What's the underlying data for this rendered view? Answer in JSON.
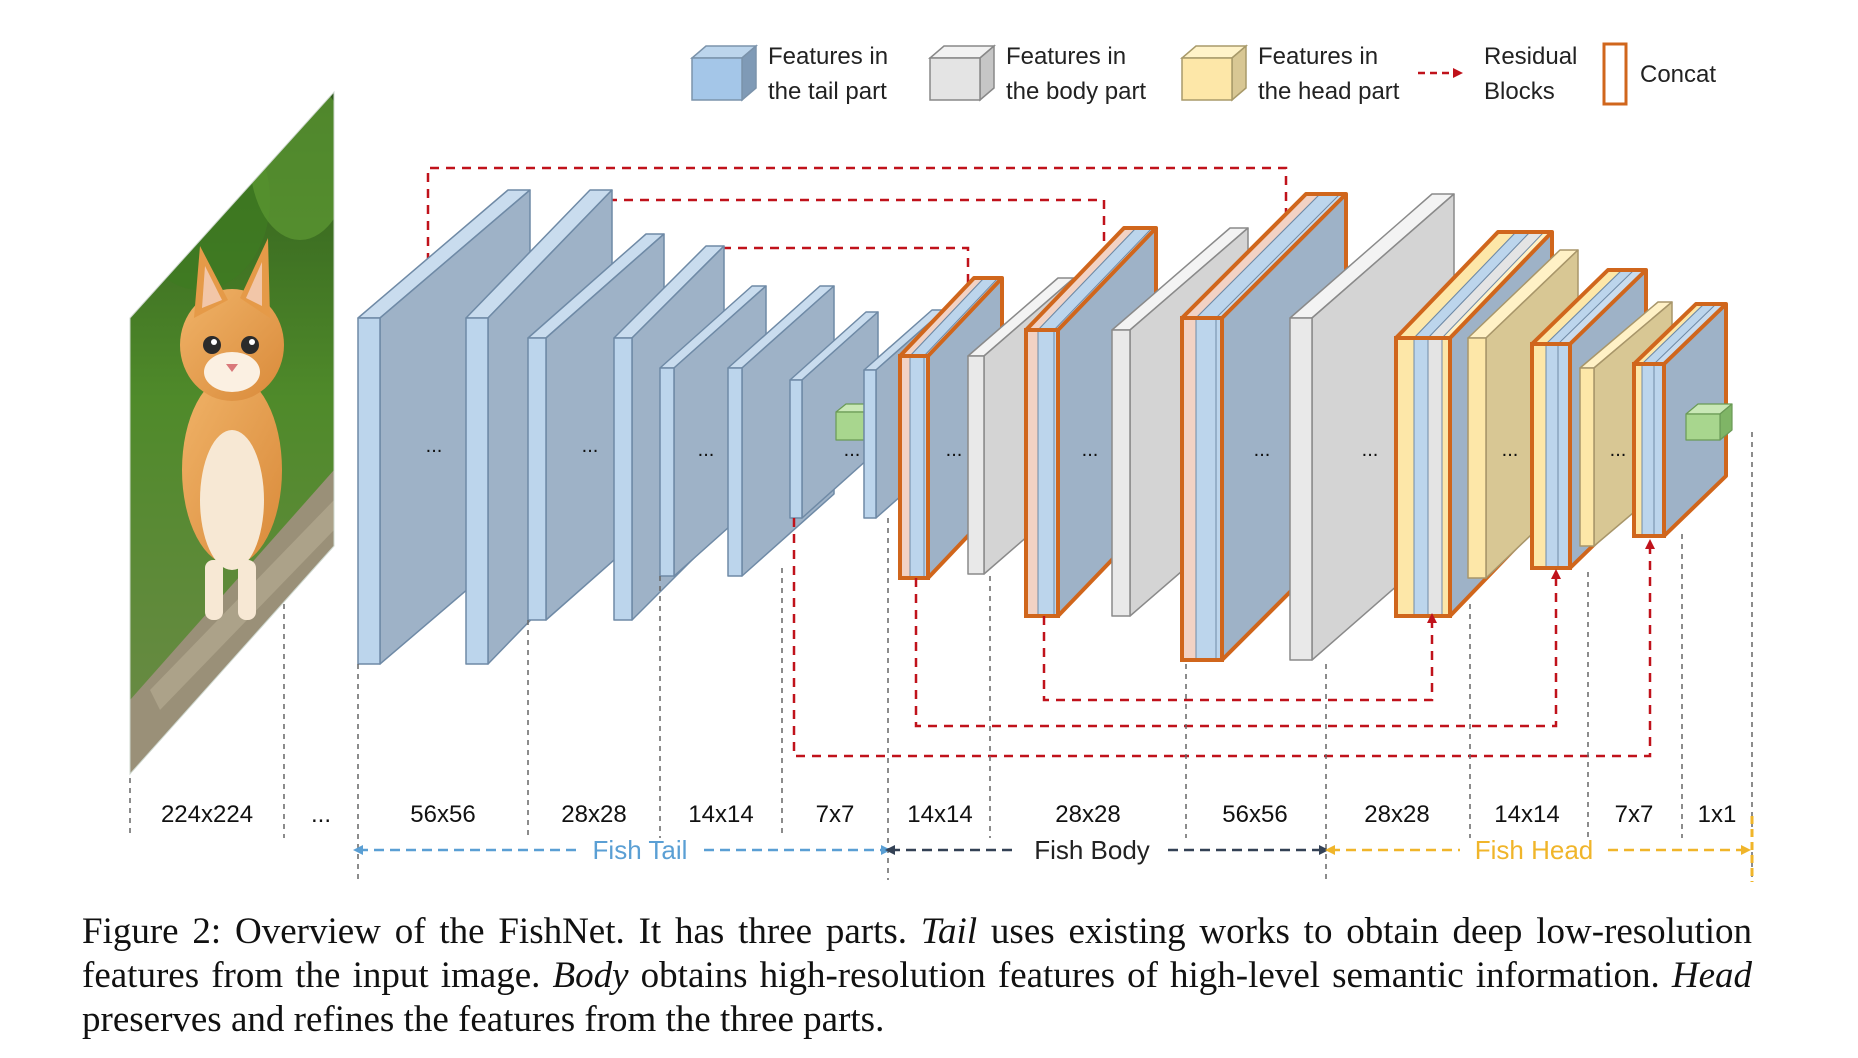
{
  "legend": {
    "tail": "Features in the tail part",
    "tail_lines": [
      "Features in",
      "the tail part"
    ],
    "body_lines": [
      "Features in",
      "the body part"
    ],
    "head_lines": [
      "Features in",
      "the head part"
    ],
    "residual_lines": [
      "Residual",
      "Blocks"
    ],
    "concat": "Concat"
  },
  "ellipsis": "...",
  "resolutions": [
    "224x224",
    "...",
    "56x56",
    "28x28",
    "14x14",
    "7x7",
    "14x14",
    "28x28",
    "56x56",
    "28x28",
    "14x14",
    "7x7",
    "1x1"
  ],
  "parts": {
    "tail": "Fish Tail",
    "body": "Fish Body",
    "head": "Fish Head"
  },
  "colors": {
    "tail": "#9eb2c7",
    "tail_front": "#bcd5ec",
    "body": "#d4d4d4",
    "head": "#d8c794",
    "head_front": "#fde7a8",
    "concat": "#d0661c",
    "residual": "#c0121b",
    "tail_label": "#5a9fd4",
    "body_label": "#334155",
    "head_label": "#f0b52a"
  },
  "caption": {
    "lead": "Figure 2: Overview of the FishNet. It has three parts. ",
    "tail_word": "Tail",
    "part1": " uses existing works to obtain deep low-resolution features from the input image. ",
    "body_word": "Body",
    "part2": " obtains high-resolution features of high-level semantic information. ",
    "head_word": "Head",
    "part3": " preserves and refines the features from the three parts."
  }
}
